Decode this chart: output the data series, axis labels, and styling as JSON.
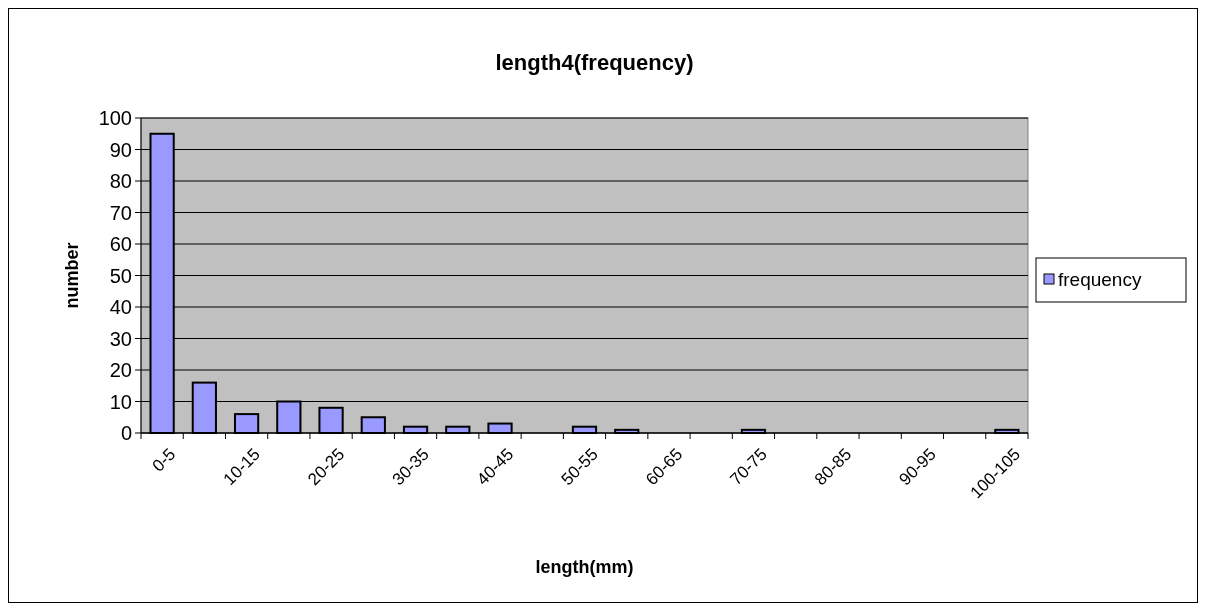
{
  "chart_data": {
    "type": "bar",
    "title": "length4(frequency)",
    "xlabel": "length(mm)",
    "ylabel": "number",
    "categories": [
      "0-5",
      null,
      "10-15",
      null,
      "20-25",
      null,
      "30-35",
      null,
      "40-45",
      null,
      "50-55",
      null,
      "60-65",
      null,
      "70-75",
      null,
      "80-85",
      null,
      "90-95",
      null,
      "100-105"
    ],
    "series": [
      {
        "name": "frequency",
        "color": "#9999ff",
        "values": [
          95,
          16,
          6,
          10,
          8,
          5,
          2,
          2,
          3,
          0,
          2,
          1,
          0,
          0,
          1,
          0,
          0,
          0,
          0,
          0,
          1
        ]
      }
    ],
    "ylim": [
      0,
      100
    ],
    "yticks": [
      0,
      10,
      20,
      30,
      40,
      50,
      60,
      70,
      80,
      90,
      100
    ],
    "grid": "y",
    "legend": "right"
  }
}
